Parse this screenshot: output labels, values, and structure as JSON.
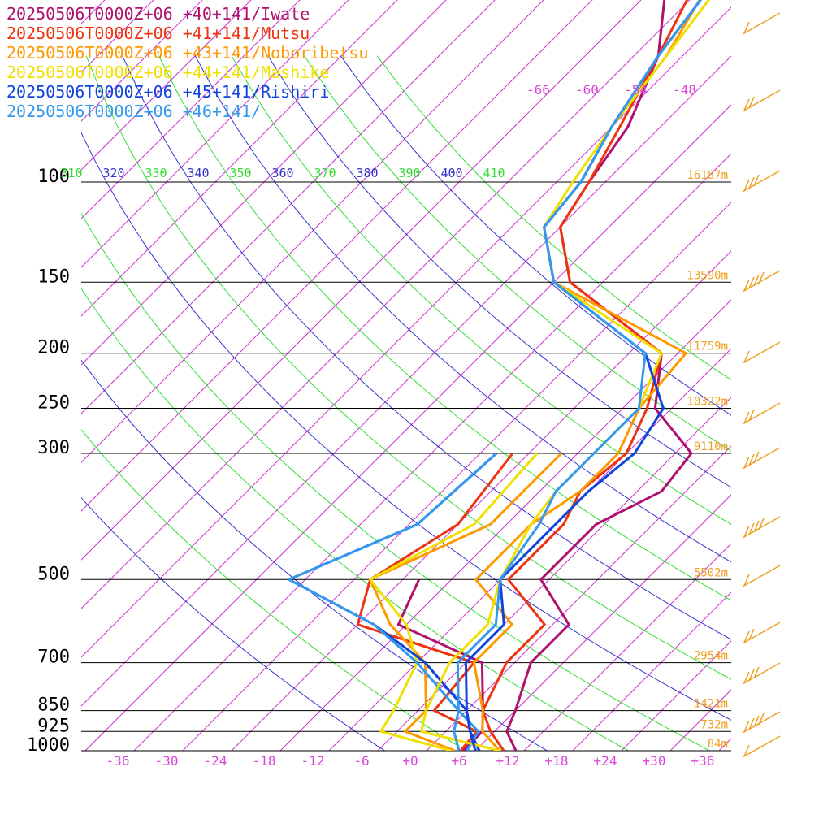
{
  "chart_data": {
    "type": "line",
    "chart_kind": "skew-T sounding",
    "title": "",
    "xlabel": "",
    "ylabel": "",
    "pressure_levels": [
      100,
      150,
      200,
      250,
      300,
      500,
      700,
      850,
      925,
      1000
    ],
    "temperature_ticks": [
      "-36",
      "-30",
      "-24",
      "-18",
      "-12",
      "-6",
      "+0",
      "+6",
      "+12",
      "+18",
      "+24",
      "+30",
      "+36"
    ],
    "theta_labels": [
      "310",
      "320",
      "330",
      "340",
      "350",
      "360",
      "370",
      "380",
      "390",
      "400",
      "410"
    ],
    "theta_colors": [
      "#33dd33",
      "#3333cc",
      "#33dd33",
      "#3333cc",
      "#33dd33",
      "#3333cc",
      "#33dd33",
      "#3333cc",
      "#33dd33",
      "#3333cc",
      "#33dd33"
    ],
    "top_isotherm_labels": [
      "-66",
      "-60",
      "-54",
      "-48"
    ],
    "heights": [
      {
        "p": 100,
        "label": "16187m"
      },
      {
        "p": 150,
        "label": "13590m"
      },
      {
        "p": 200,
        "label": "11759m"
      },
      {
        "p": 250,
        "label": "10322m"
      },
      {
        "p": 300,
        "label": "9110m"
      },
      {
        "p": 500,
        "label": "5502m"
      },
      {
        "p": 700,
        "label": "2954m"
      },
      {
        "p": 850,
        "label": "1421m"
      },
      {
        "p": 925,
        "label": "732m"
      },
      {
        "p": 1000,
        "label": "84m"
      }
    ],
    "series": [
      {
        "name": "20250506T0000Z+06 +40+141/Iwate",
        "color": "#b0106e",
        "points": [
          [
            1000,
            13
          ],
          [
            925,
            9.5
          ],
          [
            850,
            8
          ],
          [
            700,
            4
          ],
          [
            600,
            4
          ],
          [
            500,
            -5
          ],
          [
            400,
            -5
          ],
          [
            350,
            -1
          ],
          [
            300,
            -2
          ],
          [
            250,
            -12
          ],
          [
            200,
            -18
          ],
          [
            150,
            -38
          ],
          [
            120,
            -46
          ],
          [
            100,
            -48
          ],
          [
            80,
            -50
          ],
          [
            60,
            -55
          ],
          [
            40,
            -66
          ]
        ]
      },
      {
        "name": "20250506T0000Z+06 +41+141/Mutsu",
        "color": "#ee3311",
        "points": [
          [
            1000,
            11.5
          ],
          [
            925,
            7.5
          ],
          [
            850,
            4
          ],
          [
            700,
            1
          ],
          [
            600,
            1
          ],
          [
            500,
            -9
          ],
          [
            400,
            -9
          ],
          [
            350,
            -11
          ],
          [
            300,
            -10
          ],
          [
            250,
            -13
          ],
          [
            200,
            -18
          ],
          [
            150,
            -38
          ],
          [
            120,
            -46
          ],
          [
            100,
            -48
          ],
          [
            80,
            -51
          ],
          [
            60,
            -55
          ],
          [
            40,
            -61
          ]
        ]
      },
      {
        "name": "20250506T0000Z+06 +43+141/Noboribetsu",
        "color": "#ff9900",
        "points": [
          [
            1000,
            11
          ],
          [
            925,
            6.5
          ],
          [
            850,
            4
          ],
          [
            700,
            -3
          ],
          [
            600,
            -3
          ],
          [
            500,
            -13
          ],
          [
            400,
            -13
          ],
          [
            350,
            -11
          ],
          [
            300,
            -11
          ],
          [
            250,
            -14
          ],
          [
            200,
            -15
          ],
          [
            150,
            -40
          ],
          [
            120,
            -48
          ],
          [
            100,
            -49
          ],
          [
            80,
            -52
          ],
          [
            60,
            -54
          ],
          [
            40,
            -59
          ]
        ]
      },
      {
        "name": "20250506T0000Z+06 +44+141/Mashike",
        "color": "#f0e000",
        "points": [
          [
            1000,
            11
          ],
          [
            925,
            -1
          ],
          [
            850,
            -3
          ],
          [
            700,
            -6
          ],
          [
            600,
            -6
          ],
          [
            500,
            -10
          ],
          [
            400,
            -13
          ],
          [
            350,
            -14
          ],
          [
            300,
            -14
          ],
          [
            250,
            -14
          ],
          [
            200,
            -18
          ],
          [
            150,
            -40
          ],
          [
            120,
            -48
          ],
          [
            100,
            -50
          ],
          [
            80,
            -52
          ],
          [
            60,
            -54
          ],
          [
            40,
            -57
          ]
        ]
      },
      {
        "name": "20250506T0000Z+06 +45+141/Rishiri",
        "color": "#1144dd",
        "points": [
          [
            1000,
            8
          ],
          [
            925,
            5
          ],
          [
            850,
            2
          ],
          [
            700,
            -4
          ],
          [
            600,
            -4
          ],
          [
            500,
            -10
          ],
          [
            400,
            -10
          ],
          [
            350,
            -10
          ],
          [
            300,
            -9
          ],
          [
            250,
            -11
          ],
          [
            200,
            -20
          ],
          [
            150,
            -40
          ],
          [
            120,
            -48
          ],
          [
            100,
            -49
          ],
          [
            80,
            -52
          ],
          [
            60,
            -55
          ],
          [
            40,
            -58
          ]
        ]
      },
      {
        "name": "20250506T0000Z+06 +46+141/",
        "color": "#3399ee",
        "points": [
          [
            1000,
            6
          ],
          [
            925,
            3
          ],
          [
            850,
            1
          ],
          [
            700,
            -5
          ],
          [
            600,
            -5
          ],
          [
            500,
            -10
          ],
          [
            400,
            -12
          ],
          [
            350,
            -14
          ],
          [
            300,
            -14
          ],
          [
            250,
            -14
          ],
          [
            200,
            -20
          ],
          [
            150,
            -40
          ],
          [
            120,
            -48
          ],
          [
            100,
            -49
          ],
          [
            80,
            -52
          ],
          [
            60,
            -55
          ],
          [
            40,
            -58
          ]
        ]
      }
    ],
    "dewpoints": [
      {
        "color": "#b0106e",
        "points": [
          [
            1000,
            6.5
          ],
          [
            925,
            6.5
          ],
          [
            850,
            4
          ],
          [
            700,
            -2
          ],
          [
            600,
            -17
          ],
          [
            500,
            -20
          ]
        ]
      },
      {
        "color": "#ee3311",
        "points": [
          [
            1000,
            6.2
          ],
          [
            925,
            5.8
          ],
          [
            850,
            -2
          ],
          [
            700,
            -3
          ],
          [
            600,
            -22
          ],
          [
            500,
            -26
          ],
          [
            400,
            -22
          ],
          [
            300,
            -24
          ]
        ]
      },
      {
        "color": "#ff9900",
        "points": [
          [
            1000,
            5.5
          ],
          [
            925,
            -3
          ],
          [
            850,
            -3
          ],
          [
            700,
            -9
          ],
          [
            600,
            -18
          ],
          [
            500,
            -26
          ],
          [
            400,
            -18
          ],
          [
            300,
            -18
          ]
        ]
      },
      {
        "color": "#f0e000",
        "points": [
          [
            1000,
            5
          ],
          [
            925,
            -6
          ],
          [
            850,
            -7
          ],
          [
            700,
            -10
          ],
          [
            600,
            -16
          ],
          [
            500,
            -26
          ],
          [
            400,
            -20
          ],
          [
            300,
            -21
          ]
        ]
      },
      {
        "color": "#1144dd",
        "points": [
          [
            1000,
            8.5
          ],
          [
            925,
            5
          ],
          [
            850,
            2
          ],
          [
            700,
            -9
          ],
          [
            600,
            -20
          ],
          [
            500,
            -36
          ],
          [
            400,
            -27
          ],
          [
            300,
            -26
          ]
        ]
      },
      {
        "color": "#3399ee",
        "points": [
          [
            1000,
            7
          ],
          [
            925,
            6
          ],
          [
            850,
            1
          ],
          [
            700,
            -10
          ],
          [
            600,
            -20
          ],
          [
            500,
            -36
          ],
          [
            400,
            -27
          ],
          [
            300,
            -26
          ]
        ]
      }
    ],
    "wind_barb_color": "#f0a020"
  }
}
